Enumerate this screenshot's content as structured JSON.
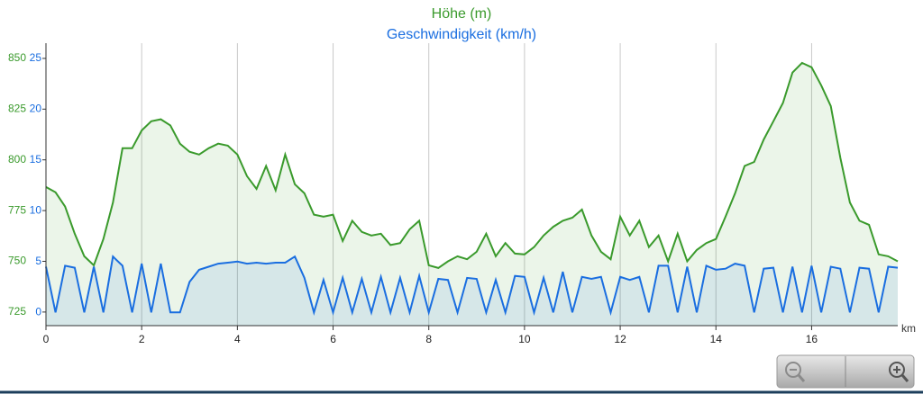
{
  "chart_data": {
    "type": "line",
    "title": "Höhe (m)",
    "subtitle": "Geschwindigkeit (km/h)",
    "xlabel": "km",
    "x": [
      0,
      0.2,
      0.4,
      0.6,
      0.8,
      1,
      1.2,
      1.4,
      1.6,
      1.8,
      2,
      2.2,
      2.4,
      2.6,
      2.8,
      3,
      3.2,
      3.4,
      3.6,
      3.8,
      4,
      4.2,
      4.4,
      4.6,
      4.8,
      5,
      5.2,
      5.4,
      5.6,
      5.8,
      6,
      6.2,
      6.4,
      6.6,
      6.8,
      7,
      7.2,
      7.4,
      7.6,
      7.8,
      8,
      8.2,
      8.4,
      8.6,
      8.8,
      9,
      9.2,
      9.4,
      9.6,
      9.8,
      10,
      10.2,
      10.4,
      10.6,
      10.8,
      11,
      11.2,
      11.4,
      11.6,
      11.8,
      12,
      12.2,
      12.4,
      12.6,
      12.8,
      13,
      13.2,
      13.4,
      13.6,
      13.8,
      14,
      14.2,
      14.4,
      14.6,
      14.8,
      15,
      15.2,
      15.4,
      15.6,
      15.8,
      16,
      16.2,
      16.4,
      16.6,
      16.8,
      17,
      17.2,
      17.4,
      17.6,
      17.8
    ],
    "series": [
      {
        "name": "Höhe (m)",
        "color": "#3a9a2c",
        "axis": "y",
        "values": [
          786.6,
          784,
          777,
          763.6,
          752.5,
          748,
          761,
          779,
          805.7,
          805.7,
          814.5,
          819,
          820,
          817,
          808,
          804,
          802.6,
          805.7,
          808,
          807,
          802.6,
          792,
          785.7,
          797,
          785,
          802.6,
          788,
          783.5,
          773,
          772,
          773,
          760,
          770,
          764.5,
          762.7,
          763.6,
          758,
          759,
          765.8,
          770,
          748,
          746.7,
          750,
          752.5,
          751,
          754.7,
          763.6,
          752.5,
          759,
          753.8,
          753.4,
          757,
          762.7,
          767,
          770,
          771.5,
          775.5,
          762.7,
          754.7,
          751,
          772,
          762.7,
          770,
          757,
          762.7,
          750,
          763.6,
          750,
          755.6,
          759,
          761,
          772,
          783.5,
          797,
          799,
          810,
          819,
          828,
          843,
          847.8,
          845.6,
          836.7,
          826.5,
          801,
          779,
          770,
          768,
          753.4,
          752.5,
          750
        ]
      },
      {
        "name": "Geschwindigkeit (km/h)",
        "color": "#1a6ee0",
        "axis": "y2",
        "values": [
          4.5,
          0,
          4.6,
          4.4,
          0,
          4.5,
          0,
          5.5,
          4.6,
          0,
          4.8,
          0,
          4.8,
          0,
          0,
          3,
          4.2,
          4.5,
          4.8,
          4.9,
          5,
          4.8,
          4.9,
          4.8,
          4.9,
          4.9,
          5.5,
          3.4,
          0,
          3.2,
          0,
          3.4,
          0,
          3.3,
          0,
          3.5,
          0,
          3.4,
          0,
          3.6,
          0,
          3.3,
          3.2,
          0,
          3.4,
          3.3,
          0,
          3.2,
          0,
          3.6,
          3.5,
          0,
          3.4,
          0,
          4,
          0,
          3.5,
          3.3,
          3.5,
          0,
          3.5,
          3.2,
          3.5,
          0,
          4.6,
          4.6,
          0,
          4.5,
          0,
          4.6,
          4.2,
          4.3,
          4.8,
          4.6,
          0,
          4.3,
          4.4,
          0,
          4.5,
          0,
          4.6,
          0,
          4.5,
          4.3,
          0,
          4.4,
          4.3,
          0,
          4.5,
          4.4
        ]
      }
    ],
    "xlim": [
      0,
      17.8
    ],
    "xticks": [
      0,
      2,
      4,
      6,
      8,
      10,
      12,
      14,
      16
    ],
    "ylim": [
      718.3,
      857.5
    ],
    "yticks": [
      725,
      750,
      775,
      800,
      825,
      850
    ],
    "y2lim": [
      -1.3,
      26.5
    ],
    "y2ticks": [
      0,
      5,
      10,
      15,
      20,
      25
    ],
    "grid": "x"
  }
}
